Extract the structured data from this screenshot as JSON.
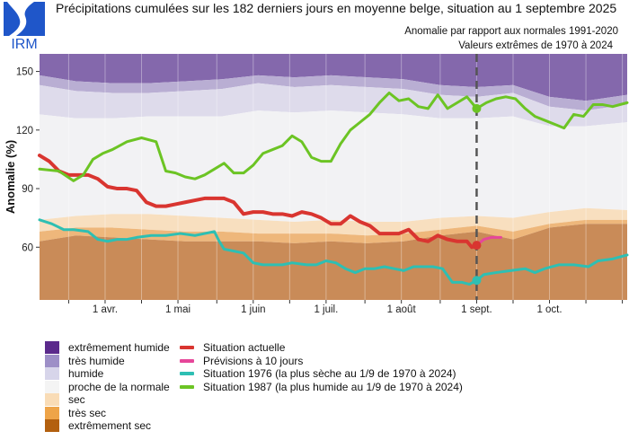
{
  "header": {
    "logo_text": "IRM",
    "title": "Précipitations cumulées sur les 182 derniers jours en moyenne belge, situation au 1 septembre 2025",
    "subtitle_1": "Anomalie par rapport aux normales 1991-2020",
    "subtitle_2": "Valeurs extrêmes de 1970 à 2024"
  },
  "colors": {
    "brand": "#1f56c9",
    "extremement_humide": "#8468ac",
    "tres_humide": "#b9aed3",
    "humide": "#dedbeb",
    "normale": "#f2f2f4",
    "sec": "#f8dfbf",
    "tres_sec": "#eeb77b",
    "extremement_sec": "#c98b58",
    "actuelle": "#d93530",
    "previsions": "#e6479a",
    "s1976": "#2ebfb3",
    "s1987": "#6cc424",
    "today_line": "#555555"
  },
  "legend": {
    "bands": [
      {
        "label": "extrêmement humide",
        "color": "#5b2a8c"
      },
      {
        "label": "très humide",
        "color": "#9d8fc7"
      },
      {
        "label": "humide",
        "color": "#d7d5ea"
      },
      {
        "label": "proche de la normale",
        "color": "#f4f4f4"
      },
      {
        "label": "sec",
        "color": "#f9dcb6"
      },
      {
        "label": "très sec",
        "color": "#eea448"
      },
      {
        "label": "extrêmement sec",
        "color": "#b3600f"
      }
    ],
    "lines": [
      {
        "label": "Situation actuelle",
        "color": "#d93530"
      },
      {
        "label": "Prévisions à 10 jours",
        "color": "#e6479a"
      },
      {
        "label": "Situation 1976 (la plus sèche au 1/9 de 1970 à 2024)",
        "color": "#2ebfb3"
      },
      {
        "label": "Situation 1987 (la plus humide au 1/9 de 1970 à 2024)",
        "color": "#6cc424"
      }
    ]
  },
  "chart_data": {
    "type": "area",
    "title": "Précipitations cumulées sur les 182 derniers jours en moyenne belge, situation au 1 septembre 2025",
    "xlabel": "",
    "ylabel": "Anomalie (%)",
    "x_unit": "days relative to 1 sept. 2025",
    "xlim": [
      -180,
      62
    ],
    "ylim": [
      33,
      159
    ],
    "yticks": [
      60,
      90,
      120,
      150
    ],
    "xticks": [
      {
        "day": -153,
        "label": "1 avr."
      },
      {
        "day": -123,
        "label": "1 mai"
      },
      {
        "day": -92,
        "label": "1 juin"
      },
      {
        "day": -62,
        "label": "1 juil."
      },
      {
        "day": -31,
        "label": "1 août"
      },
      {
        "day": 0,
        "label": "1 sept."
      },
      {
        "day": 30,
        "label": "1 oct."
      }
    ],
    "minor_ticks": [
      -168,
      -138,
      -107,
      -77,
      -46,
      -15,
      15,
      45,
      60
    ],
    "grid": true,
    "current_date_day": 0,
    "bands_x": [
      -180,
      -165,
      -150,
      -135,
      -120,
      -105,
      -90,
      -75,
      -60,
      -45,
      -30,
      -15,
      0,
      15,
      30,
      45,
      62
    ],
    "band_edges": {
      "very_wet_min": [
        148,
        145,
        144,
        144,
        145,
        146,
        148,
        147,
        148,
        147,
        146,
        143,
        142,
        143,
        137,
        135,
        138
      ],
      "wet_min": [
        143,
        140,
        139,
        139,
        140,
        141,
        144,
        142,
        143,
        142,
        141,
        138,
        137,
        139,
        132,
        130,
        133
      ],
      "normal_max": [
        128,
        126,
        126,
        127,
        127,
        127,
        130,
        129,
        130,
        129,
        128,
        126,
        126,
        127,
        122,
        122,
        124
      ],
      "normal_min": [
        74,
        76,
        77,
        77,
        76,
        75,
        74,
        73,
        74,
        73,
        73,
        75,
        76,
        75,
        78,
        80,
        79
      ],
      "dry_max": [
        68,
        70,
        70,
        69,
        68,
        68,
        67,
        67,
        67,
        66,
        67,
        69,
        71,
        68,
        72,
        74,
        74
      ],
      "very_dry_max": [
        63,
        66,
        65,
        64,
        63,
        63,
        63,
        62,
        63,
        62,
        63,
        66,
        68,
        64,
        70,
        72,
        72
      ]
    },
    "series": [
      {
        "name": "Situation actuelle",
        "x": [
          -180,
          -176,
          -172,
          -168,
          -164,
          -160,
          -156,
          -152,
          -148,
          -144,
          -140,
          -136,
          -132,
          -128,
          -124,
          -120,
          -116,
          -112,
          -108,
          -104,
          -100,
          -96,
          -92,
          -88,
          -84,
          -80,
          -76,
          -72,
          -68,
          -64,
          -60,
          -56,
          -52,
          -48,
          -44,
          -40,
          -36,
          -32,
          -28,
          -24,
          -20,
          -16,
          -12,
          -8,
          -4,
          -2,
          0
        ],
        "values": [
          107,
          104,
          99,
          97,
          97,
          97,
          95,
          91,
          90,
          90,
          89,
          83,
          81,
          81,
          82,
          83,
          84,
          85,
          85,
          85,
          83,
          77,
          78,
          78,
          77,
          77,
          76,
          78,
          77,
          75,
          72,
          72,
          76,
          73,
          71,
          67,
          67,
          67,
          69,
          64,
          63,
          66,
          64,
          63,
          63,
          60,
          61
        ]
      },
      {
        "name": "Prévisions à 10 jours",
        "x": [
          0,
          3,
          6,
          10
        ],
        "values": [
          61,
          64,
          65,
          65
        ]
      },
      {
        "name": "Situation 1976",
        "x": [
          -180,
          -175,
          -170,
          -166,
          -160,
          -156,
          -152,
          -148,
          -144,
          -140,
          -134,
          -128,
          -122,
          -116,
          -112,
          -108,
          -106,
          -104,
          -100,
          -96,
          -92,
          -88,
          -84,
          -80,
          -76,
          -70,
          -66,
          -62,
          -58,
          -54,
          -50,
          -46,
          -42,
          -38,
          -34,
          -30,
          -26,
          -22,
          -18,
          -14,
          -10,
          -6,
          -3,
          0,
          3,
          8,
          14,
          20,
          24,
          28,
          34,
          40,
          46,
          50,
          56,
          62
        ],
        "values": [
          74,
          72,
          69,
          69,
          68,
          64,
          63,
          64,
          64,
          65,
          66,
          66,
          67,
          66,
          67,
          68,
          63,
          59,
          58,
          57,
          52,
          51,
          51,
          51,
          52,
          51,
          51,
          53,
          52,
          49,
          47,
          49,
          49,
          50,
          49,
          48,
          50,
          50,
          50,
          49,
          42,
          42,
          41,
          43,
          46,
          47,
          48,
          49,
          47,
          49,
          51,
          51,
          50,
          53,
          54,
          56
        ]
      },
      {
        "name": "Situation 1987",
        "x": [
          -180,
          -172,
          -166,
          -162,
          -158,
          -154,
          -150,
          -144,
          -138,
          -132,
          -128,
          -124,
          -120,
          -116,
          -112,
          -108,
          -104,
          -100,
          -96,
          -92,
          -88,
          -84,
          -80,
          -76,
          -72,
          -68,
          -64,
          -60,
          -56,
          -52,
          -48,
          -44,
          -40,
          -36,
          -32,
          -28,
          -24,
          -20,
          -16,
          -12,
          -8,
          -4,
          0,
          4,
          8,
          12,
          16,
          20,
          24,
          28,
          32,
          36,
          40,
          44,
          48,
          52,
          56,
          62
        ],
        "values": [
          100,
          99,
          94,
          97,
          105,
          108,
          110,
          114,
          116,
          114,
          99,
          98,
          96,
          95,
          97,
          100,
          103,
          98,
          98,
          102,
          108,
          110,
          112,
          117,
          114,
          106,
          104,
          104,
          113,
          120,
          124,
          128,
          134,
          139,
          135,
          136,
          132,
          131,
          138,
          131,
          134,
          137,
          131,
          134,
          136,
          137,
          136,
          131,
          127,
          125,
          123,
          121,
          128,
          127,
          133,
          133,
          132,
          134
        ]
      }
    ],
    "markers": [
      {
        "series": "Situation actuelle",
        "day": 0,
        "value": 61
      },
      {
        "series": "Situation 1976",
        "day": 0,
        "value": 43
      },
      {
        "series": "Situation 1987",
        "day": 0,
        "value": 131
      }
    ]
  }
}
